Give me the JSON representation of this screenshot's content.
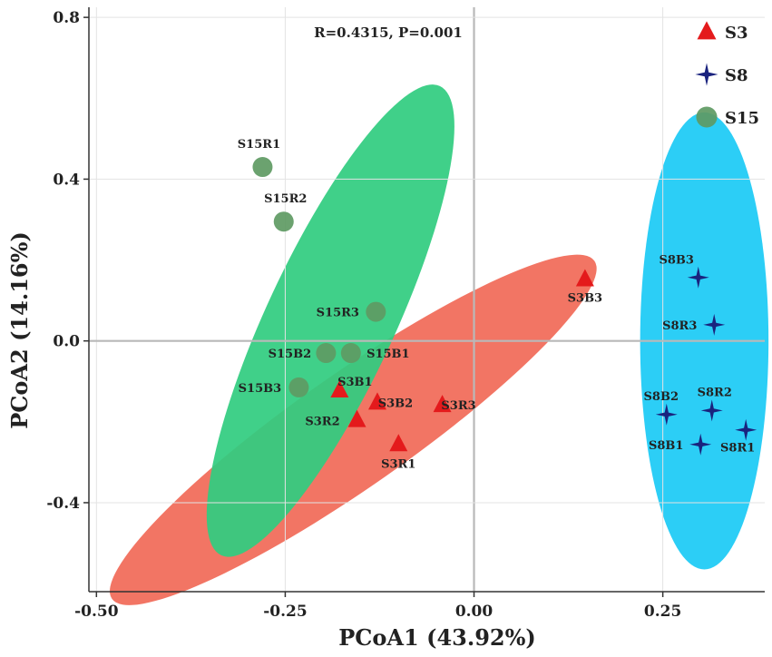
{
  "chart_data": {
    "type": "scatter",
    "title": "",
    "annotation": "R=0.4315, P=0.001",
    "xlabel": "PCoA1 (43.92%)",
    "ylabel": "PCoA2 (14.16%)",
    "xlim": [
      -0.51,
      0.385
    ],
    "ylim": [
      -0.62,
      0.825
    ],
    "grid": true,
    "x_ticks": [
      -0.5,
      -0.25,
      0.0,
      0.25
    ],
    "x_tick_labels": [
      "-0.50",
      "-0.25",
      "0.00",
      "0.25"
    ],
    "y_ticks": [
      -0.4,
      0.0,
      0.4,
      0.8
    ],
    "y_tick_labels": [
      "-0.4",
      "0.0",
      "0.4",
      "0.8"
    ],
    "legend_position": "top-right",
    "series": [
      {
        "name": "S3",
        "marker": "triangle",
        "color": "#e41a1c",
        "ellipse_color": "#f16a58",
        "ellipse": {
          "cx": -0.16,
          "cy": -0.22,
          "rx": 0.39,
          "ry": 0.14,
          "angle_deg": 35
        },
        "points": [
          {
            "label": "S3B1",
            "x": -0.178,
            "y": -0.122
          },
          {
            "label": "S3B2",
            "x": -0.128,
            "y": -0.152
          },
          {
            "label": "S3R3",
            "x": -0.042,
            "y": -0.158
          },
          {
            "label": "S3R2",
            "x": -0.155,
            "y": -0.195
          },
          {
            "label": "S3R1",
            "x": -0.1,
            "y": -0.255
          },
          {
            "label": "S3B3",
            "x": 0.147,
            "y": 0.153
          }
        ]
      },
      {
        "name": "S8",
        "marker": "star4",
        "color": "#1a237e",
        "ellipse_color": "#1ccaf5",
        "ellipse": {
          "cx": 0.305,
          "cy": 0.0,
          "rx": 0.085,
          "ry": 0.565,
          "angle_deg": 0
        },
        "points": [
          {
            "label": "S8B3",
            "x": 0.297,
            "y": 0.157
          },
          {
            "label": "S8R3",
            "x": 0.318,
            "y": 0.04
          },
          {
            "label": "S8R2",
            "x": 0.315,
            "y": -0.172
          },
          {
            "label": "S8B2",
            "x": 0.255,
            "y": -0.182
          },
          {
            "label": "S8B1",
            "x": 0.3,
            "y": -0.256
          },
          {
            "label": "S8R1",
            "x": 0.36,
            "y": -0.22
          }
        ]
      },
      {
        "name": "S15",
        "marker": "circle",
        "color": "#5e9a63",
        "ellipse_color": "#31cc80",
        "ellipse": {
          "cx": -0.19,
          "cy": 0.05,
          "rx": 0.085,
          "ry": 0.64,
          "angle_deg": -25
        },
        "points": [
          {
            "label": "S15R1",
            "x": -0.28,
            "y": 0.43
          },
          {
            "label": "S15R2",
            "x": -0.252,
            "y": 0.295
          },
          {
            "label": "S15R3",
            "x": -0.13,
            "y": 0.072
          },
          {
            "label": "S15B2",
            "x": -0.196,
            "y": -0.03
          },
          {
            "label": "S15B1",
            "x": -0.163,
            "y": -0.03
          },
          {
            "label": "S15B3",
            "x": -0.232,
            "y": -0.115
          }
        ]
      }
    ]
  }
}
